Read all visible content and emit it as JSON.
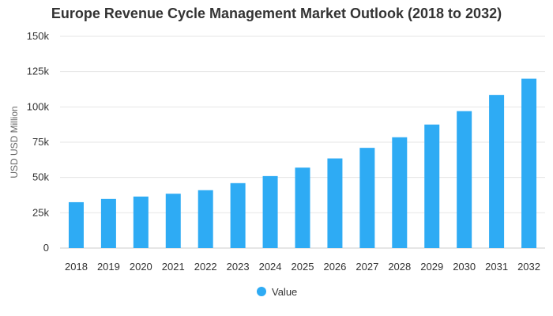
{
  "chart_data": {
    "type": "bar",
    "title": "Europe Revenue Cycle Management Market Outlook (2018 to 2032)",
    "xlabel": "",
    "ylabel": "USD USD Million",
    "categories": [
      "2018",
      "2019",
      "2020",
      "2021",
      "2022",
      "2023",
      "2024",
      "2025",
      "2026",
      "2027",
      "2028",
      "2029",
      "2030",
      "2031",
      "2032"
    ],
    "series": [
      {
        "name": "Value",
        "values": [
          32500,
          34800,
          36500,
          38500,
          41000,
          46000,
          51000,
          57000,
          63500,
          71000,
          78500,
          87500,
          97000,
          108500,
          120000
        ]
      }
    ],
    "ylim": [
      0,
      150000
    ],
    "yticks": [
      0,
      25000,
      50000,
      75000,
      100000,
      125000,
      150000
    ],
    "ytick_labels": [
      "0",
      "25k",
      "50k",
      "75k",
      "100k",
      "125k",
      "150k"
    ],
    "grid": true,
    "legend_position": "bottom-center",
    "colors": {
      "bar": "#2eabf4",
      "grid": "#e6e6e6",
      "axis_line": "#cccccc"
    }
  }
}
